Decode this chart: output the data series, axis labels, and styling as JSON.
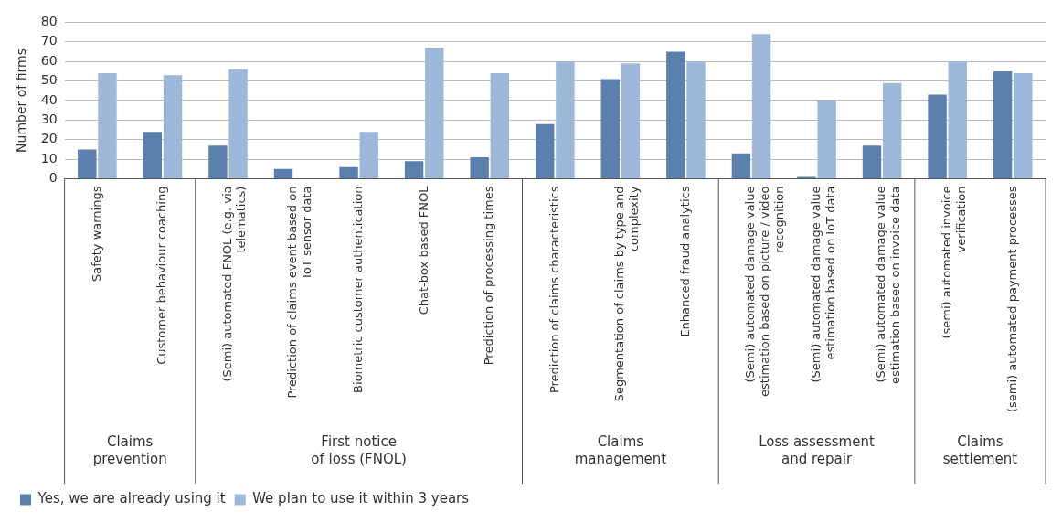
{
  "chart_data": {
    "type": "bar",
    "ylabel": "Number of firms",
    "categories": [
      "Safety warnings",
      "Customer behaviour coaching",
      "(Semi) automated FNOL (e.g. via telematics)",
      "Prediction of claims event based on IoT sensor data",
      "Biometric customer authentication",
      "Chat-box based FNOL",
      "Prediction of processing times",
      "Prediction of claims characteristics",
      "Segmentation of claims by type and complexity",
      "Enhanced fraud analytics",
      "(Semi) automated damage value estimation based on picture / video recognition",
      "(Semi) automated damage value estimation based on IoT data",
      "(Semi) automated damage value estimation based on invoice data",
      "(semi) automated invoice verification",
      "(semi) automated payment processes"
    ],
    "series": [
      {
        "name": "Yes, we are already using it",
        "color": "#5b80ad",
        "values": [
          15,
          24,
          17,
          5,
          6,
          9,
          11,
          28,
          51,
          65,
          13,
          1,
          17,
          43,
          55
        ]
      },
      {
        "name": "We plan to use it within 3 years",
        "color": "#9db8d9",
        "values": [
          54,
          53,
          56,
          null,
          24,
          67,
          54,
          60,
          59,
          60,
          74,
          40,
          49,
          60,
          54
        ]
      }
    ],
    "ylim": [
      0,
      80
    ],
    "yticks": [
      0,
      10,
      20,
      30,
      40,
      50,
      60,
      70,
      80
    ],
    "grid": "y",
    "legend": "bottom left",
    "annotations": [
      "Claims prevention",
      "First notice of loss (FNOL)",
      "Claims management",
      "Loss assessment and repair",
      "Claims settlement"
    ]
  }
}
